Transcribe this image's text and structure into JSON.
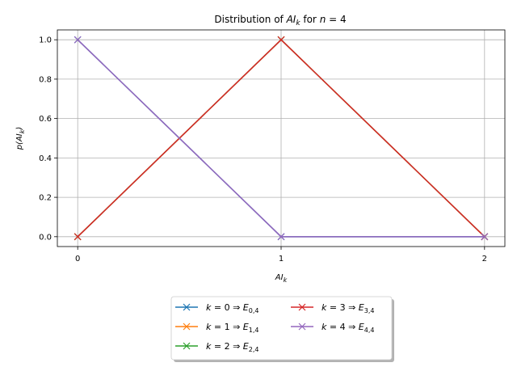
{
  "chart_data": {
    "type": "line",
    "title": "Distribution of AI_k for n = 4",
    "xlabel": "AI_k",
    "ylabel": "p(AI_k)",
    "x": [
      0,
      1,
      2
    ],
    "xlim": [
      -0.1,
      2.1
    ],
    "ylim": [
      -0.05,
      1.05
    ],
    "xticks": [
      "0",
      "1",
      "2"
    ],
    "yticks": [
      "0.0",
      "0.2",
      "0.4",
      "0.6",
      "0.8",
      "1.0"
    ],
    "grid": true,
    "legend_position": "bottom-center",
    "series": [
      {
        "name": "k = 0 ⇒ E_{0,4}",
        "values": [
          1,
          0,
          0
        ],
        "color": "#1f77b4"
      },
      {
        "name": "k = 1 ⇒ E_{1,4}",
        "values": [
          0,
          1,
          0
        ],
        "color": "#ff7f0e"
      },
      {
        "name": "k = 2 ⇒ E_{2,4}",
        "values": [
          0,
          1,
          0
        ],
        "color": "#2ca02c"
      },
      {
        "name": "k = 3 ⇒ E_{3,4}",
        "values": [
          0,
          1,
          0
        ],
        "color": "#d62728"
      },
      {
        "name": "k = 4 ⇒ E_{4,4}",
        "values": [
          1,
          0,
          0
        ],
        "color": "#9467bd"
      }
    ]
  },
  "title_parts": {
    "pre": "Distribution of ",
    "var": "AI",
    "sub": "k",
    "mid": " for ",
    "n": "n",
    "eq": " = 4"
  },
  "xlabel_parts": {
    "var": "AI",
    "sub": "k"
  },
  "ylabel_parts": {
    "p": "p(",
    "var": "AI",
    "sub": "k",
    "close": ")"
  },
  "legend": [
    {
      "k": "k",
      "eq": " = 0 ⇒ ",
      "E": "E",
      "sub": "0,4",
      "color": "#1f77b4"
    },
    {
      "k": "k",
      "eq": " = 1 ⇒ ",
      "E": "E",
      "sub": "1,4",
      "color": "#ff7f0e"
    },
    {
      "k": "k",
      "eq": " = 2 ⇒ ",
      "E": "E",
      "sub": "2,4",
      "color": "#2ca02c"
    },
    {
      "k": "k",
      "eq": " = 3 ⇒ ",
      "E": "E",
      "sub": "3,4",
      "color": "#d62728"
    },
    {
      "k": "k",
      "eq": " = 4 ⇒ ",
      "E": "E",
      "sub": "4,4",
      "color": "#9467bd"
    }
  ]
}
